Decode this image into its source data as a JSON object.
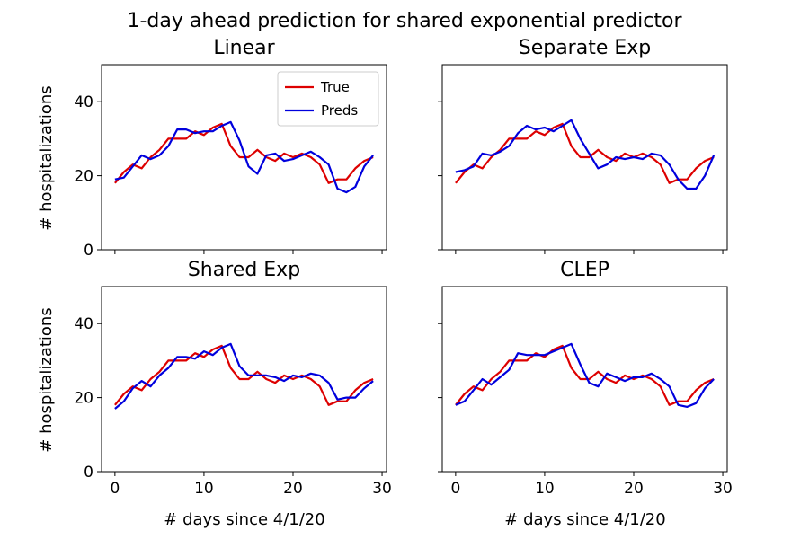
{
  "suptitle": "1-day ahead prediction for shared exponential predictor",
  "xlabel": "# days since 4/1/20",
  "ylabel": "# hospitalizations",
  "legend": {
    "placement": "upper-right",
    "entries": [
      "True",
      "Preds"
    ]
  },
  "colors": {
    "true": "#dd0000",
    "preds": "#0000dd"
  },
  "xlim": [
    -1.5,
    30.5
  ],
  "ylim": [
    0,
    50
  ],
  "xticks": [
    0,
    10,
    20,
    30
  ],
  "yticks": [
    0,
    20,
    40
  ],
  "chart_data": [
    {
      "type": "line",
      "title": "Linear",
      "x": [
        0,
        1,
        2,
        3,
        4,
        5,
        6,
        7,
        8,
        9,
        10,
        11,
        12,
        13,
        14,
        15,
        16,
        17,
        18,
        19,
        20,
        21,
        22,
        23,
        24,
        25,
        26,
        27,
        28,
        29
      ],
      "series": [
        {
          "name": "True",
          "values": [
            18,
            21,
            23,
            22,
            25,
            27,
            30,
            30,
            30,
            32,
            31,
            33,
            34,
            28,
            25,
            25,
            27,
            25,
            24,
            26,
            25,
            26,
            25,
            23,
            18,
            19,
            19,
            22,
            24,
            25
          ]
        },
        {
          "name": "Preds",
          "values": [
            19,
            19.5,
            22.5,
            25.5,
            24.5,
            25.5,
            28,
            32.5,
            32.5,
            31.5,
            32,
            32,
            33.5,
            34.5,
            29.5,
            22.5,
            20.5,
            25.5,
            26,
            24,
            24.5,
            25.5,
            26.5,
            25,
            23,
            16.5,
            15.5,
            17,
            22.5,
            25.5
          ]
        }
      ]
    },
    {
      "type": "line",
      "title": "Separate Exp",
      "x": [
        0,
        1,
        2,
        3,
        4,
        5,
        6,
        7,
        8,
        9,
        10,
        11,
        12,
        13,
        14,
        15,
        16,
        17,
        18,
        19,
        20,
        21,
        22,
        23,
        24,
        25,
        26,
        27,
        28,
        29
      ],
      "series": [
        {
          "name": "True",
          "values": [
            18,
            21,
            23,
            22,
            25,
            27,
            30,
            30,
            30,
            32,
            31,
            33,
            34,
            28,
            25,
            25,
            27,
            25,
            24,
            26,
            25,
            26,
            25,
            23,
            18,
            19,
            19,
            22,
            24,
            25
          ]
        },
        {
          "name": "Preds",
          "values": [
            21,
            21.5,
            22.5,
            26,
            25.5,
            26.5,
            28,
            31.5,
            33.5,
            32.5,
            33,
            32,
            33.5,
            35,
            30,
            26,
            22,
            23,
            25,
            24.5,
            25,
            24.5,
            26,
            25.5,
            23,
            19,
            16.5,
            16.5,
            20,
            25.5
          ]
        }
      ]
    },
    {
      "type": "line",
      "title": "Shared Exp",
      "x": [
        0,
        1,
        2,
        3,
        4,
        5,
        6,
        7,
        8,
        9,
        10,
        11,
        12,
        13,
        14,
        15,
        16,
        17,
        18,
        19,
        20,
        21,
        22,
        23,
        24,
        25,
        26,
        27,
        28,
        29
      ],
      "series": [
        {
          "name": "True",
          "values": [
            18,
            21,
            23,
            22,
            25,
            27,
            30,
            30,
            30,
            32,
            31,
            33,
            34,
            28,
            25,
            25,
            27,
            25,
            24,
            26,
            25,
            26,
            25,
            23,
            18,
            19,
            19,
            22,
            24,
            25
          ]
        },
        {
          "name": "Preds",
          "values": [
            17,
            19,
            22.5,
            24.5,
            23,
            26,
            28,
            31,
            31,
            30.5,
            32.5,
            31.5,
            33.5,
            34.5,
            28.5,
            26,
            26,
            26,
            25.5,
            24.5,
            26,
            25.5,
            26.5,
            26,
            24,
            19.5,
            20,
            20,
            22.5,
            24.5
          ]
        }
      ]
    },
    {
      "type": "line",
      "title": "CLEP",
      "x": [
        0,
        1,
        2,
        3,
        4,
        5,
        6,
        7,
        8,
        9,
        10,
        11,
        12,
        13,
        14,
        15,
        16,
        17,
        18,
        19,
        20,
        21,
        22,
        23,
        24,
        25,
        26,
        27,
        28,
        29
      ],
      "series": [
        {
          "name": "True",
          "values": [
            18,
            21,
            23,
            22,
            25,
            27,
            30,
            30,
            30,
            32,
            31,
            33,
            34,
            28,
            25,
            25,
            27,
            25,
            24,
            26,
            25,
            26,
            25,
            23,
            18,
            19,
            19,
            22,
            24,
            25
          ]
        },
        {
          "name": "Preds",
          "values": [
            18,
            19,
            22,
            25,
            23.5,
            25.5,
            27.5,
            32,
            31.5,
            31.5,
            31.5,
            32.5,
            33.5,
            34.5,
            29,
            24,
            23,
            26.5,
            25.5,
            24.5,
            25.5,
            25.5,
            26.5,
            25,
            23,
            18,
            17.5,
            18.5,
            22.5,
            25
          ]
        }
      ]
    }
  ]
}
